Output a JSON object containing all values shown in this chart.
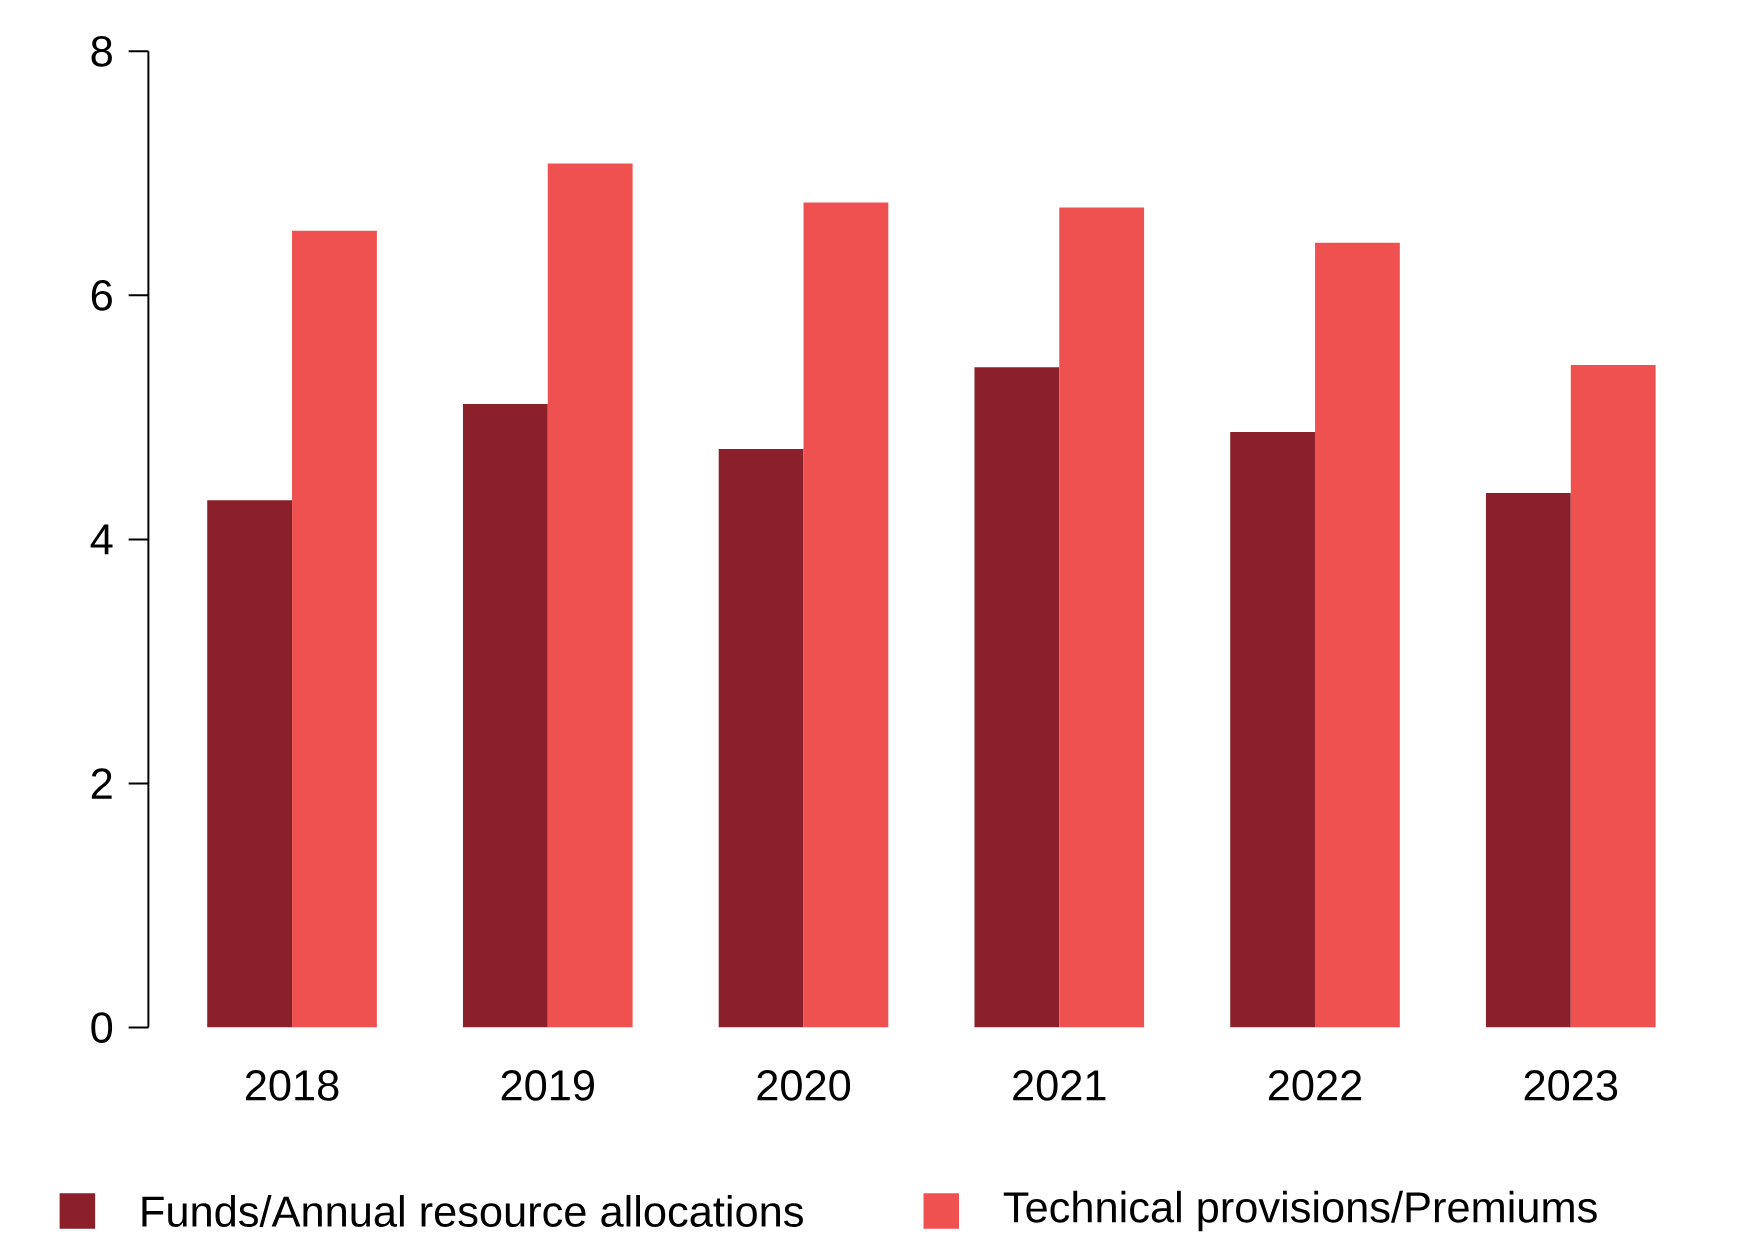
{
  "chart_data": {
    "type": "bar",
    "categories": [
      "2018",
      "2019",
      "2020",
      "2021",
      "2022",
      "2023"
    ],
    "series": [
      {
        "name": "Funds/Annual resource allocations",
        "color": "#8b1f2a",
        "values": [
          4.32,
          5.11,
          4.74,
          5.41,
          4.88,
          4.38
        ]
      },
      {
        "name": "Technical provisions/Premiums",
        "color": "#ef5050",
        "values": [
          6.53,
          7.08,
          6.76,
          6.72,
          6.43,
          5.43
        ]
      }
    ],
    "ylim": [
      0,
      8
    ],
    "yticks": [
      0,
      2,
      4,
      6,
      8
    ],
    "grid": false,
    "legend": "bottom"
  }
}
